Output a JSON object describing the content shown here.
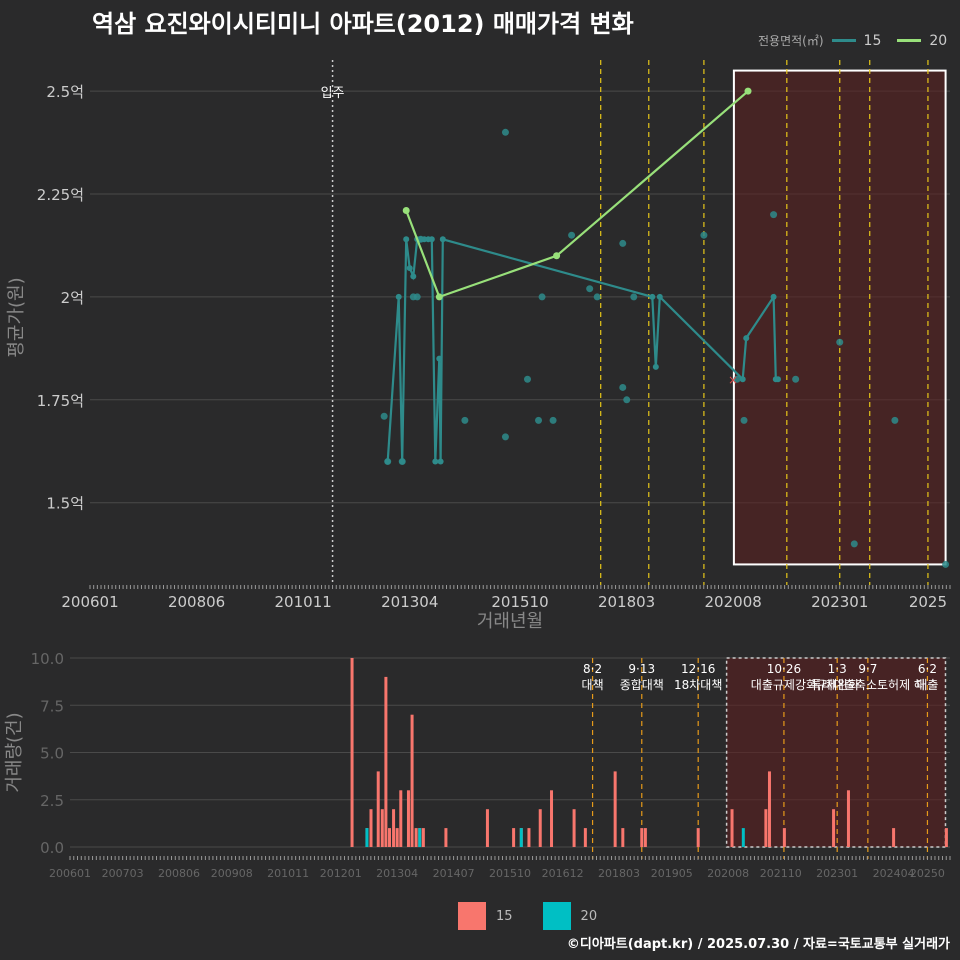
{
  "title": "역삼 요진와이시티미니 아파트(2012) 매매가격 변화",
  "legend": {
    "label": "전용면적(㎡)",
    "items": [
      {
        "name": "15",
        "color": "#2e8b8b"
      },
      {
        "name": "20",
        "color": "#98e07a"
      }
    ]
  },
  "bottom_legend": [
    {
      "name": "15",
      "color": "#f8766d"
    },
    {
      "name": "20",
      "color": "#00bfc4"
    }
  ],
  "footer": "©디아파트(dapt.kr) / 2025.07.30 / 자료=국토교통부 실거래가",
  "chart_data": [
    {
      "type": "line",
      "title": "역삼 요진와이시티미니 아파트(2012) 매매가격 변화",
      "xlabel": "거래년월",
      "ylabel": "평균가(원)",
      "xlim": [
        2006.0,
        2025.5
      ],
      "ylim": [
        1.3,
        2.6
      ],
      "y_ticks": [
        1.5,
        1.75,
        2.0,
        2.25,
        2.5
      ],
      "y_tick_labels": [
        "1.5억",
        "1.75억",
        "2억",
        "2.25억",
        "2.5억"
      ],
      "x_ticks": [
        2006.0,
        2008.4167,
        2010.8333,
        2013.25,
        2015.75,
        2018.1667,
        2020.5833,
        2023.0,
        2025.0
      ],
      "x_tick_labels": [
        "200601",
        "200806",
        "201011",
        "201304",
        "201510",
        "201803",
        "202008",
        "202301",
        "2025"
      ],
      "annotations": [
        {
          "x": 2011.5,
          "label": "입주"
        }
      ],
      "shaded_region": {
        "x": [
          2020.6,
          2025.4
        ],
        "y": [
          1.35,
          2.55
        ]
      },
      "vlines": [
        2017.58,
        2018.67,
        2019.92,
        2021.8,
        2023.0,
        2023.68,
        2025.0
      ],
      "series": [
        {
          "name": "15",
          "color": "#2e8b8b",
          "x": [
            2012.75,
            2013.0,
            2013.08,
            2013.17,
            2013.25,
            2013.33,
            2013.42,
            2013.5,
            2013.58,
            2013.67,
            2013.75,
            2013.83,
            2013.92,
            2013.95,
            2014.0,
            2018.75,
            2018.83,
            2018.92,
            2020.8,
            2020.88,
            2021.5,
            2021.55,
            2021.6
          ],
          "y": [
            1.6,
            2.0,
            1.6,
            2.14,
            2.07,
            2.05,
            2.14,
            2.14,
            2.14,
            2.14,
            2.14,
            1.6,
            1.85,
            1.6,
            2.14,
            2.0,
            1.83,
            2.0,
            1.8,
            1.9,
            2.0,
            1.8,
            1.8
          ]
        },
        {
          "name": "20",
          "color": "#98e07a",
          "x": [
            2013.17,
            2013.92,
            2016.58,
            2020.92
          ],
          "y": [
            2.21,
            2.0,
            2.1,
            2.5
          ]
        }
      ],
      "points": {
        "x": [
          2012.67,
          2012.75,
          2013.08,
          2013.33,
          2013.42,
          2013.5,
          2014.5,
          2015.42,
          2015.42,
          2015.92,
          2016.17,
          2016.25,
          2016.5,
          2016.92,
          2017.33,
          2017.5,
          2018.08,
          2018.08,
          2018.17,
          2018.33,
          2019.92,
          2020.67,
          2020.83,
          2021.5,
          2022.0,
          2023.0,
          2023.33,
          2024.25,
          2025.4
        ],
        "y": [
          1.71,
          1.6,
          1.6,
          2.0,
          2.0,
          2.14,
          1.7,
          2.4,
          1.66,
          1.8,
          1.7,
          2.0,
          1.7,
          2.15,
          2.02,
          2.0,
          2.13,
          1.78,
          1.75,
          2.0,
          2.15,
          1.8,
          1.7,
          2.2,
          1.8,
          1.89,
          1.4,
          1.7,
          1.35
        ]
      },
      "cross_marker": {
        "x": 2020.58,
        "y": 1.8
      }
    },
    {
      "type": "bar",
      "xlabel": "",
      "ylabel": "거래량(건)",
      "xlim": [
        2006.0,
        2025.5
      ],
      "ylim": [
        0,
        10
      ],
      "y_ticks": [
        0,
        2.5,
        5.0,
        7.5,
        10.0
      ],
      "y_tick_labels": [
        "0.0",
        "2.5",
        "5.0",
        "7.5",
        "10.0"
      ],
      "x_ticks": [
        2006.0,
        2007.1667,
        2008.4167,
        2009.5833,
        2010.8333,
        2012.0,
        2013.25,
        2014.5,
        2015.75,
        2016.9167,
        2018.1667,
        2019.3333,
        2020.5833,
        2021.75,
        2023.0,
        2024.25,
        2025.0
      ],
      "x_tick_labels": [
        "200601",
        "200703",
        "200806",
        "200908",
        "201011",
        "201201",
        "201304",
        "201407",
        "201510",
        "201612",
        "201803",
        "201905",
        "202008",
        "202110",
        "202301",
        "202404",
        "20250"
      ],
      "policies": [
        {
          "x": 2017.58,
          "date": "8·2",
          "label": "대책"
        },
        {
          "x": 2018.67,
          "date": "9·13",
          "label": "종합대책"
        },
        {
          "x": 2019.92,
          "date": "12·16",
          "label": "18차대책"
        },
        {
          "x": 2021.82,
          "date": "10·26",
          "label": "대출규제강화"
        },
        {
          "x": 2023.0,
          "date": "1·3",
          "label": "규제완화"
        },
        {
          "x": 2023.68,
          "date": "9·7",
          "label": "특례대출축소토허제 해"
        },
        {
          "x": 2025.0,
          "date": "6·2",
          "label": "대출"
        }
      ],
      "shaded_region": {
        "x": [
          2020.55,
          2025.4
        ],
        "y": [
          0,
          10
        ]
      },
      "series": [
        {
          "name": "15",
          "color": "#f8766d",
          "x": [
            2012.25,
            2012.58,
            2012.67,
            2012.83,
            2012.92,
            2013.0,
            2013.08,
            2013.17,
            2013.25,
            2013.33,
            2013.5,
            2013.58,
            2013.67,
            2013.75,
            2013.83,
            2014.33,
            2015.25,
            2015.83,
            2016.0,
            2016.17,
            2016.42,
            2016.67,
            2017.17,
            2017.42,
            2018.08,
            2018.25,
            2018.67,
            2018.75,
            2019.92,
            2020.67,
            2021.42,
            2021.5,
            2021.83,
            2022.92,
            2023.25,
            2024.25,
            2025.42
          ],
          "values": [
            10,
            1,
            2,
            4,
            2,
            9,
            1,
            2,
            1,
            3,
            3,
            7,
            1,
            1,
            1,
            1,
            2,
            1,
            1,
            1,
            2,
            3,
            2,
            1,
            4,
            1,
            1,
            1,
            1,
            2,
            2,
            4,
            1,
            2,
            3,
            1,
            1
          ]
        },
        {
          "name": "20",
          "color": "#00bfc4",
          "x": [
            2012.58,
            2013.75,
            2016.0,
            2020.92
          ],
          "values": [
            1,
            1,
            1,
            1
          ]
        }
      ]
    }
  ]
}
